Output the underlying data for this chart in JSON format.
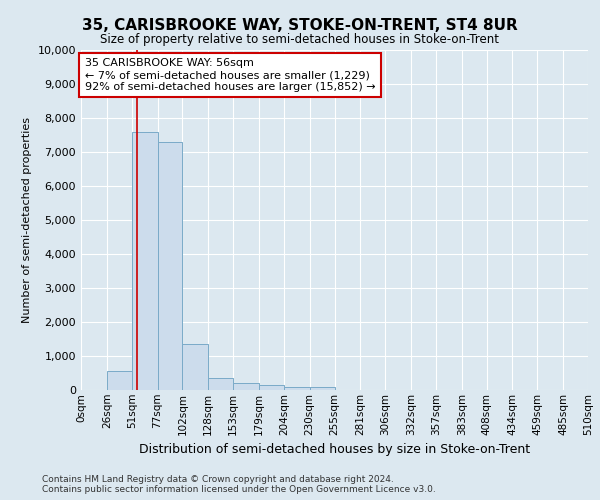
{
  "title": "35, CARISBROOKE WAY, STOKE-ON-TRENT, ST4 8UR",
  "subtitle": "Size of property relative to semi-detached houses in Stoke-on-Trent",
  "xlabel": "Distribution of semi-detached houses by size in Stoke-on-Trent",
  "ylabel": "Number of semi-detached properties",
  "bins": [
    0,
    26,
    51,
    77,
    102,
    128,
    153,
    179,
    204,
    230,
    255,
    281,
    306,
    332,
    357,
    383,
    408,
    434,
    459,
    485,
    510
  ],
  "bar_values": [
    0,
    550,
    7600,
    7300,
    1350,
    350,
    200,
    150,
    100,
    100,
    0,
    0,
    0,
    0,
    0,
    0,
    0,
    0,
    0,
    0
  ],
  "bar_color": "#ccdcec",
  "bar_edge_color": "#7aaac8",
  "property_sqm": 56,
  "red_line_color": "#cc0000",
  "annotation_title": "35 CARISBROOKE WAY: 56sqm",
  "annotation_line1": "← 7% of semi-detached houses are smaller (1,229)",
  "annotation_line2": "92% of semi-detached houses are larger (15,852) →",
  "annotation_box_color": "#ffffff",
  "annotation_box_edge": "#cc0000",
  "ylim": [
    0,
    10000
  ],
  "yticks": [
    0,
    1000,
    2000,
    3000,
    4000,
    5000,
    6000,
    7000,
    8000,
    9000,
    10000
  ],
  "bg_color": "#dce8f0",
  "plot_bg_color": "#dce8f0",
  "grid_color": "#ffffff",
  "footer_line1": "Contains HM Land Registry data © Crown copyright and database right 2024.",
  "footer_line2": "Contains public sector information licensed under the Open Government Licence v3.0."
}
